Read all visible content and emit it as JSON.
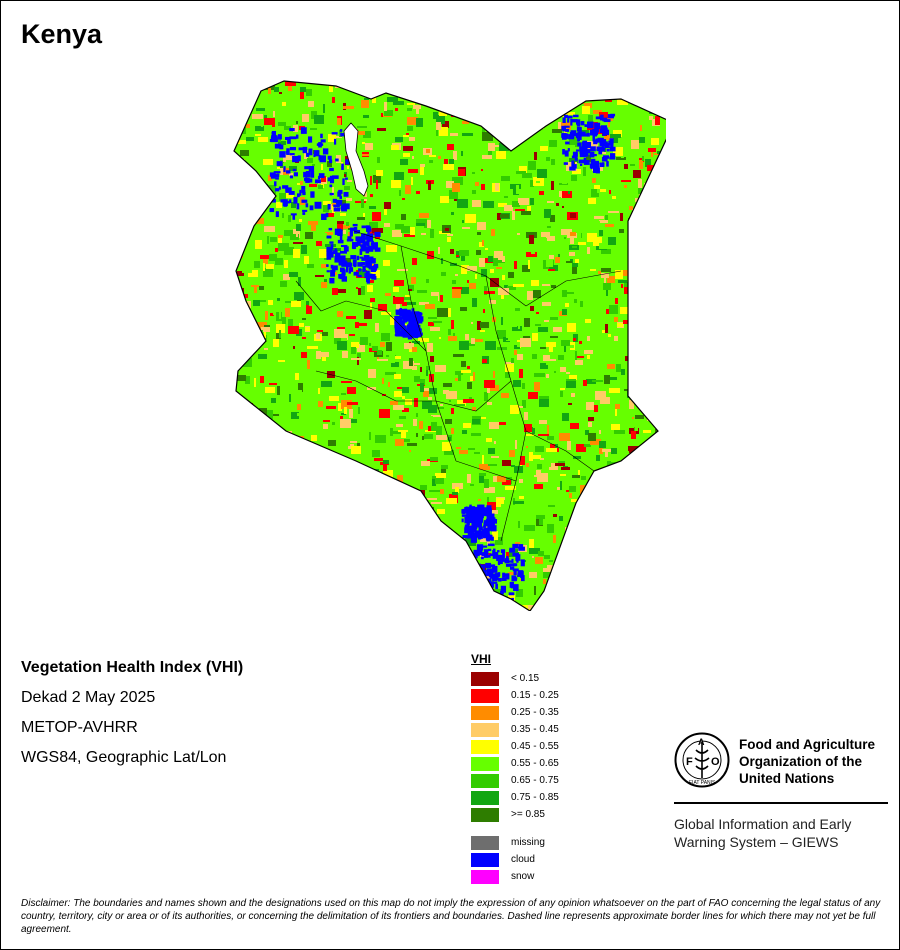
{
  "map": {
    "title": "Kenya"
  },
  "info": {
    "index_title": "Vegetation Health Index (VHI)",
    "period": "Dekad 2 May 2025",
    "sensor": "METOP-AVHRR",
    "projection": "WGS84, Geographic Lat/Lon"
  },
  "legend": {
    "title": "VHI",
    "classes": [
      {
        "label": "< 0.15",
        "color": "#9b0000"
      },
      {
        "label": "0.15 - 0.25",
        "color": "#ff0000"
      },
      {
        "label": "0.25 - 0.35",
        "color": "#ff8c00"
      },
      {
        "label": "0.35 - 0.45",
        "color": "#ffcc66"
      },
      {
        "label": "0.45 - 0.55",
        "color": "#ffff00"
      },
      {
        "label": "0.55 - 0.65",
        "color": "#66ff00"
      },
      {
        "label": "0.65 - 0.75",
        "color": "#33cc00"
      },
      {
        "label": "0.75 - 0.85",
        "color": "#12a612"
      },
      {
        "label": ">= 0.85",
        "color": "#2e7d00"
      }
    ],
    "special": [
      {
        "label": "missing",
        "color": "#6e6e6e"
      },
      {
        "label": "cloud",
        "color": "#0000ff"
      },
      {
        "label": "snow",
        "color": "#ff00ff"
      }
    ]
  },
  "fao": {
    "logo_letters": [
      "F",
      "A",
      "O"
    ],
    "logo_motto": "FIAT PANIS",
    "name_lines": [
      "Food and Agriculture",
      "Organization of the",
      "United Nations"
    ],
    "system_lines": [
      "Global Information and Early",
      "Warning System – GIEWS"
    ]
  },
  "disclaimer": "Disclaimer: The boundaries and names shown and the designations used on this map do not imply the expression of any opinion whatsoever on the part of FAO concerning the legal status of any country, territory, city or area or of its authorities, or concerning the delimitation of its frontiers and boundaries. Dashed line represents approximate border lines for which there may not yet be full agreement."
}
